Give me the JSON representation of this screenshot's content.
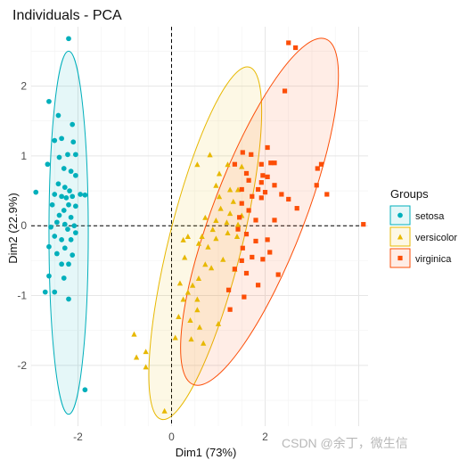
{
  "chart_data": {
    "type": "scatter",
    "title": "Individuals - PCA",
    "xlabel": "Dim1 (73%)",
    "ylabel": "Dim2 (22.9%)",
    "xlim": [
      -3.0,
      4.2
    ],
    "ylim": [
      -2.87,
      2.85
    ],
    "xticks": [
      -2,
      0,
      2
    ],
    "yticks": [
      -2,
      -1,
      0,
      1,
      2
    ],
    "grid": true,
    "reference_lines": {
      "x": 0,
      "y": 0,
      "style": "dashed"
    },
    "legend": {
      "title": "Groups",
      "position": "right"
    },
    "series": [
      {
        "name": "setosa",
        "color": "#00AFBB",
        "marker": "circle",
        "ellipse": {
          "cx": -2.2,
          "cy": -0.1,
          "rx": 0.42,
          "ry": 2.6,
          "angle_deg": 0
        },
        "points": [
          [
            -2.2,
            2.68
          ],
          [
            -2.62,
            1.78
          ],
          [
            -2.42,
            1.58
          ],
          [
            -2.12,
            1.45
          ],
          [
            -2.35,
            1.25
          ],
          [
            -2.5,
            1.22
          ],
          [
            -2.1,
            1.2
          ],
          [
            -2.22,
            1.02
          ],
          [
            -2.4,
            0.98
          ],
          [
            -2.05,
            1.02
          ],
          [
            -2.65,
            0.88
          ],
          [
            -2.3,
            0.82
          ],
          [
            -2.15,
            0.78
          ],
          [
            -2.05,
            0.72
          ],
          [
            -2.42,
            0.6
          ],
          [
            -2.28,
            0.55
          ],
          [
            -2.18,
            0.5
          ],
          [
            -2.5,
            0.45
          ],
          [
            -2.35,
            0.42
          ],
          [
            -2.25,
            0.4
          ],
          [
            -2.12,
            0.42
          ],
          [
            -2.9,
            0.48
          ],
          [
            -1.95,
            0.45
          ],
          [
            -1.85,
            0.44
          ],
          [
            -2.55,
            0.3
          ],
          [
            -2.2,
            0.3
          ],
          [
            -2.05,
            0.28
          ],
          [
            -2.3,
            0.22
          ],
          [
            -2.4,
            0.15
          ],
          [
            -2.15,
            0.12
          ],
          [
            -2.45,
            0.05
          ],
          [
            -2.28,
            0.02
          ],
          [
            -2.08,
            0.0
          ],
          [
            -2.58,
            -0.02
          ],
          [
            -2.22,
            -0.05
          ],
          [
            -2.05,
            -0.1
          ],
          [
            -2.5,
            -0.15
          ],
          [
            -2.35,
            -0.2
          ],
          [
            -2.15,
            -0.2
          ],
          [
            -2.62,
            -0.3
          ],
          [
            -2.28,
            -0.32
          ],
          [
            -2.45,
            -0.4
          ],
          [
            -2.12,
            -0.42
          ],
          [
            -2.35,
            -0.55
          ],
          [
            -2.2,
            -0.55
          ],
          [
            -2.62,
            -0.72
          ],
          [
            -2.3,
            -0.75
          ],
          [
            -2.5,
            -0.95
          ],
          [
            -2.7,
            -0.95
          ],
          [
            -2.2,
            -1.05
          ],
          [
            -1.85,
            -2.35
          ]
        ]
      },
      {
        "name": "versicolor",
        "color": "#E7B800",
        "marker": "triangle",
        "ellipse": {
          "cx": 0.72,
          "cy": -0.25,
          "rx": 0.78,
          "ry": 2.6,
          "angle_deg": 14
        },
        "points": [
          [
            0.82,
            1.02
          ],
          [
            0.55,
            0.88
          ],
          [
            1.2,
            0.88
          ],
          [
            1.02,
            0.75
          ],
          [
            1.5,
            0.85
          ],
          [
            0.95,
            0.58
          ],
          [
            1.25,
            0.52
          ],
          [
            1.42,
            0.52
          ],
          [
            1.02,
            0.42
          ],
          [
            1.32,
            0.35
          ],
          [
            1.05,
            0.25
          ],
          [
            1.25,
            0.18
          ],
          [
            1.5,
            0.15
          ],
          [
            0.72,
            0.12
          ],
          [
            0.95,
            0.08
          ],
          [
            1.18,
            0.05
          ],
          [
            1.42,
            0.02
          ],
          [
            0.88,
            -0.05
          ],
          [
            1.2,
            -0.1
          ],
          [
            0.35,
            -0.15
          ],
          [
            0.65,
            -0.15
          ],
          [
            0.95,
            -0.18
          ],
          [
            1.4,
            -0.15
          ],
          [
            0.25,
            -0.2
          ],
          [
            0.58,
            -0.25
          ],
          [
            0.78,
            -0.3
          ],
          [
            0.28,
            -0.45
          ],
          [
            0.72,
            -0.55
          ],
          [
            1.1,
            -0.48
          ],
          [
            0.85,
            -0.6
          ],
          [
            1.35,
            -0.62
          ],
          [
            0.58,
            -0.75
          ],
          [
            0.45,
            -0.85
          ],
          [
            0.18,
            -0.82
          ],
          [
            0.35,
            -0.95
          ],
          [
            0.55,
            -1.05
          ],
          [
            0.25,
            -1.05
          ],
          [
            0.55,
            -1.2
          ],
          [
            0.15,
            -1.3
          ],
          [
            0.4,
            -1.35
          ],
          [
            0.6,
            -1.45
          ],
          [
            1.0,
            -1.4
          ],
          [
            0.08,
            -1.6
          ],
          [
            0.42,
            -1.62
          ],
          [
            -0.8,
            -1.55
          ],
          [
            0.68,
            -1.68
          ],
          [
            -0.55,
            -1.8
          ],
          [
            -0.75,
            -1.88
          ],
          [
            -0.55,
            -2.02
          ],
          [
            -0.15,
            -2.65
          ]
        ]
      },
      {
        "name": "virginica",
        "color": "#FC4E07",
        "marker": "square",
        "ellipse": {
          "cx": 1.88,
          "cy": 0.2,
          "rx": 0.98,
          "ry": 2.65,
          "angle_deg": 21
        },
        "points": [
          [
            2.5,
            2.62
          ],
          [
            2.65,
            2.55
          ],
          [
            2.42,
            1.93
          ],
          [
            2.05,
            1.12
          ],
          [
            1.7,
            1.02
          ],
          [
            1.52,
            1.05
          ],
          [
            2.2,
            0.9
          ],
          [
            1.35,
            0.88
          ],
          [
            1.92,
            0.88
          ],
          [
            2.12,
            0.9
          ],
          [
            1.6,
            0.75
          ],
          [
            3.2,
            0.88
          ],
          [
            3.12,
            0.82
          ],
          [
            1.95,
            0.72
          ],
          [
            2.05,
            0.7
          ],
          [
            1.65,
            0.65
          ],
          [
            1.92,
            0.62
          ],
          [
            2.2,
            0.58
          ],
          [
            3.1,
            0.58
          ],
          [
            1.5,
            0.52
          ],
          [
            1.85,
            0.52
          ],
          [
            2.0,
            0.48
          ],
          [
            2.35,
            0.45
          ],
          [
            1.72,
            0.42
          ],
          [
            1.92,
            0.4
          ],
          [
            3.32,
            0.45
          ],
          [
            2.5,
            0.38
          ],
          [
            1.5,
            0.32
          ],
          [
            1.65,
            0.22
          ],
          [
            2.68,
            0.25
          ],
          [
            1.45,
            0.12
          ],
          [
            1.8,
            0.08
          ],
          [
            2.2,
            0.08
          ],
          [
            4.1,
            0.02
          ],
          [
            1.42,
            -0.05
          ],
          [
            1.6,
            -0.12
          ],
          [
            2.05,
            -0.2
          ],
          [
            1.8,
            -0.22
          ],
          [
            1.52,
            -0.32
          ],
          [
            2.1,
            -0.38
          ],
          [
            1.72,
            -0.45
          ],
          [
            1.5,
            -0.5
          ],
          [
            1.95,
            -0.48
          ],
          [
            1.35,
            -0.62
          ],
          [
            1.6,
            -0.68
          ],
          [
            2.28,
            -0.7
          ],
          [
            1.85,
            -0.85
          ],
          [
            1.22,
            -0.92
          ],
          [
            1.55,
            -1.02
          ],
          [
            1.25,
            -1.2
          ]
        ]
      }
    ]
  },
  "watermark": "CSDN @余丁，微生信"
}
